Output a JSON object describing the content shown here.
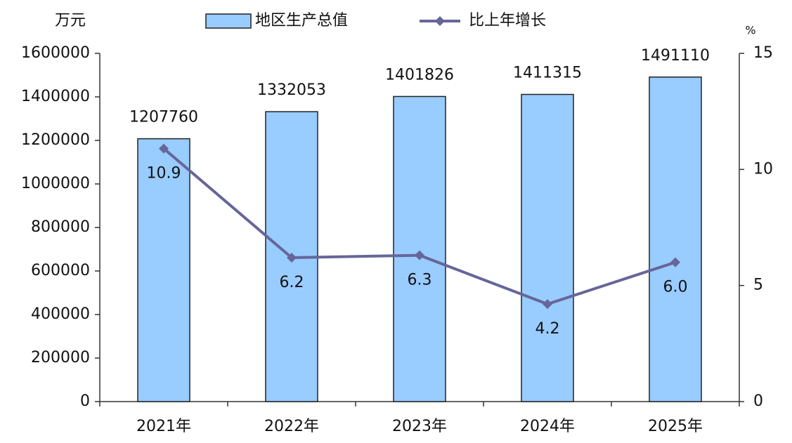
{
  "chart_data": {
    "type": "bar",
    "y_label": "万元",
    "y2_label": "%",
    "categories": [
      "2021年",
      "2022年",
      "2023年",
      "2024年",
      "2025年"
    ],
    "series": [
      {
        "name": "地区生产总值",
        "color": "#99ccff",
        "values": [
          1207760,
          1332053,
          1401826,
          1411315,
          1491110
        ]
      },
      {
        "name": "比上年增长",
        "color": "#666699",
        "type": "line",
        "axis": "y2",
        "values": [
          10.9,
          6.2,
          6.3,
          4.2,
          6.0
        ],
        "value_labels": [
          "10.9",
          "6.2",
          "6.3",
          "4.2",
          "6.0"
        ]
      }
    ],
    "ylim": [
      0,
      1600000
    ],
    "yticks": [
      0,
      200000,
      400000,
      600000,
      800000,
      1000000,
      1200000,
      1400000,
      1600000
    ],
    "y2lim": [
      0,
      15
    ],
    "y2ticks": [
      0,
      5,
      10,
      15
    ],
    "grid": false
  }
}
